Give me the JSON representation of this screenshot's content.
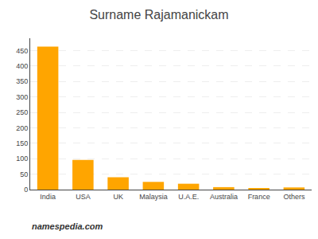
{
  "chart_data": {
    "type": "bar",
    "title": "Surname Rajamanickam",
    "categories": [
      "India",
      "USA",
      "UK",
      "Malaysia",
      "U.A.E.",
      "Australia",
      "France",
      "Others"
    ],
    "values": [
      463,
      96,
      40,
      25,
      19,
      8,
      4,
      7
    ],
    "color": "#FFA500",
    "ylim": [
      0,
      490
    ],
    "yticks": [
      0,
      50,
      100,
      150,
      200,
      250,
      300,
      350,
      400,
      450
    ],
    "grid": true,
    "annotations": [
      "namespedia.com"
    ]
  }
}
